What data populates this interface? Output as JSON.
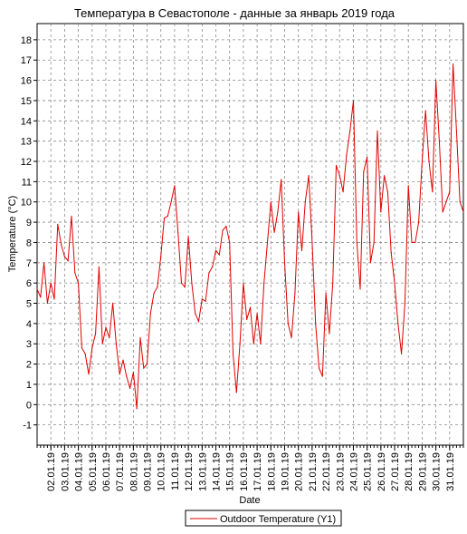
{
  "chart_data": {
    "type": "line",
    "title": "Температура в Севастополе - данные за январь 2019 года",
    "xlabel": "Date",
    "ylabel": "Temperature (°C)",
    "ylim": [
      -2,
      18.8
    ],
    "yticks": [
      -1,
      0,
      1,
      2,
      3,
      4,
      5,
      6,
      7,
      8,
      9,
      10,
      11,
      12,
      13,
      14,
      15,
      16,
      17,
      18
    ],
    "xlim": [
      "2019-01-01",
      "2019-02-01"
    ],
    "xtick_labels": [
      "02.01.19",
      "03.01.19",
      "04.01.19",
      "05.01.19",
      "06.01.19",
      "07.01.19",
      "08.01.19",
      "09.01.19",
      "10.01.19",
      "11.01.19",
      "12.01.19",
      "13.01.19",
      "14.01.19",
      "15.01.19",
      "16.01.19",
      "17.01.19",
      "18.01.19",
      "19.01.19",
      "20.01.19",
      "21.01.19",
      "22.01.19",
      "23.01.19",
      "24.01.19",
      "25.01.19",
      "26.01.19",
      "27.01.19",
      "28.01.19",
      "29.01.19",
      "30.01.19",
      "31.01.19"
    ],
    "grid": true,
    "legend_position": "bottom-center",
    "series": [
      {
        "name": "Outdoor Temperature (Y1)",
        "color": "#e00000",
        "x": [
          "2019-01-01 00:00",
          "2019-01-01 06:00",
          "2019-01-01 12:00",
          "2019-01-01 18:00",
          "2019-01-02 00:00",
          "2019-01-02 06:00",
          "2019-01-02 12:00",
          "2019-01-02 18:00",
          "2019-01-03 00:00",
          "2019-01-03 06:00",
          "2019-01-03 12:00",
          "2019-01-03 18:00",
          "2019-01-04 00:00",
          "2019-01-04 06:00",
          "2019-01-04 12:00",
          "2019-01-04 18:00",
          "2019-01-05 00:00",
          "2019-01-05 06:00",
          "2019-01-05 12:00",
          "2019-01-05 18:00",
          "2019-01-06 00:00",
          "2019-01-06 06:00",
          "2019-01-06 12:00",
          "2019-01-06 18:00",
          "2019-01-07 00:00",
          "2019-01-07 06:00",
          "2019-01-07 12:00",
          "2019-01-07 18:00",
          "2019-01-08 00:00",
          "2019-01-08 06:00",
          "2019-01-08 12:00",
          "2019-01-08 18:00",
          "2019-01-09 00:00",
          "2019-01-09 06:00",
          "2019-01-09 12:00",
          "2019-01-09 18:00",
          "2019-01-10 00:00",
          "2019-01-10 06:00",
          "2019-01-10 12:00",
          "2019-01-10 18:00",
          "2019-01-11 00:00",
          "2019-01-11 06:00",
          "2019-01-11 12:00",
          "2019-01-11 18:00",
          "2019-01-12 00:00",
          "2019-01-12 06:00",
          "2019-01-12 12:00",
          "2019-01-12 18:00",
          "2019-01-13 00:00",
          "2019-01-13 06:00",
          "2019-01-13 12:00",
          "2019-01-13 18:00",
          "2019-01-14 00:00",
          "2019-01-14 06:00",
          "2019-01-14 12:00",
          "2019-01-14 18:00",
          "2019-01-15 00:00",
          "2019-01-15 06:00",
          "2019-01-15 12:00",
          "2019-01-15 18:00",
          "2019-01-16 00:00",
          "2019-01-16 06:00",
          "2019-01-16 12:00",
          "2019-01-16 18:00",
          "2019-01-17 00:00",
          "2019-01-17 06:00",
          "2019-01-17 12:00",
          "2019-01-17 18:00",
          "2019-01-18 00:00",
          "2019-01-18 06:00",
          "2019-01-18 12:00",
          "2019-01-18 18:00",
          "2019-01-19 00:00",
          "2019-01-19 06:00",
          "2019-01-19 12:00",
          "2019-01-19 18:00",
          "2019-01-20 00:00",
          "2019-01-20 06:00",
          "2019-01-20 12:00",
          "2019-01-20 18:00",
          "2019-01-21 00:00",
          "2019-01-21 06:00",
          "2019-01-21 12:00",
          "2019-01-21 18:00",
          "2019-01-22 00:00",
          "2019-01-22 06:00",
          "2019-01-22 12:00",
          "2019-01-22 18:00",
          "2019-01-23 00:00",
          "2019-01-23 06:00",
          "2019-01-23 12:00",
          "2019-01-23 18:00",
          "2019-01-24 00:00",
          "2019-01-24 06:00",
          "2019-01-24 12:00",
          "2019-01-24 18:00",
          "2019-01-25 00:00",
          "2019-01-25 06:00",
          "2019-01-25 12:00",
          "2019-01-25 18:00",
          "2019-01-26 00:00",
          "2019-01-26 06:00",
          "2019-01-26 12:00",
          "2019-01-26 18:00",
          "2019-01-27 00:00",
          "2019-01-27 06:00",
          "2019-01-27 12:00",
          "2019-01-27 18:00",
          "2019-01-28 00:00",
          "2019-01-28 06:00",
          "2019-01-28 12:00",
          "2019-01-28 18:00",
          "2019-01-29 00:00",
          "2019-01-29 06:00",
          "2019-01-29 12:00",
          "2019-01-29 18:00",
          "2019-01-30 00:00",
          "2019-01-30 06:00",
          "2019-01-30 12:00",
          "2019-01-30 18:00",
          "2019-01-31 00:00",
          "2019-01-31 06:00",
          "2019-01-31 12:00",
          "2019-01-31 18:00",
          "2019-02-01 00:00"
        ],
        "y": [
          5.7,
          5.3,
          7.0,
          5.0,
          6.0,
          5.2,
          8.9,
          7.9,
          7.3,
          7.1,
          9.3,
          6.5,
          6.0,
          2.8,
          2.5,
          1.5,
          2.8,
          3.5,
          6.8,
          3.0,
          3.8,
          3.3,
          5.0,
          3.0,
          1.5,
          2.2,
          1.4,
          0.8,
          1.6,
          -0.2,
          3.3,
          1.8,
          2.0,
          4.5,
          5.5,
          5.8,
          7.3,
          9.2,
          9.3,
          10.0,
          10.8,
          8.5,
          6.0,
          5.8,
          8.3,
          6.0,
          4.5,
          4.1,
          5.2,
          5.1,
          6.5,
          6.8,
          7.6,
          7.4,
          8.6,
          8.8,
          8.0,
          2.5,
          0.6,
          3.0,
          6.0,
          4.2,
          4.8,
          3.0,
          4.5,
          3.0,
          6.0,
          8.0,
          10.0,
          8.5,
          9.5,
          11.1,
          7.0,
          4.0,
          3.3,
          5.5,
          9.5,
          7.6,
          10.0,
          11.3,
          8.0,
          4.0,
          1.8,
          1.4,
          5.5,
          3.5,
          6.0,
          11.8,
          11.3,
          10.5,
          12.3,
          13.5,
          15.0,
          8.0,
          5.7,
          11.5,
          12.2,
          7.0,
          8.0,
          13.5,
          9.5,
          11.3,
          10.5,
          7.5,
          6.0,
          4.0,
          2.5,
          5.0,
          10.8,
          8.0,
          8.0,
          9.0,
          12.0,
          14.5,
          12.0,
          10.5,
          16.0,
          13.0,
          9.5,
          10.0,
          10.5,
          16.8,
          13.5,
          10.0,
          9.5
        ]
      }
    ]
  }
}
